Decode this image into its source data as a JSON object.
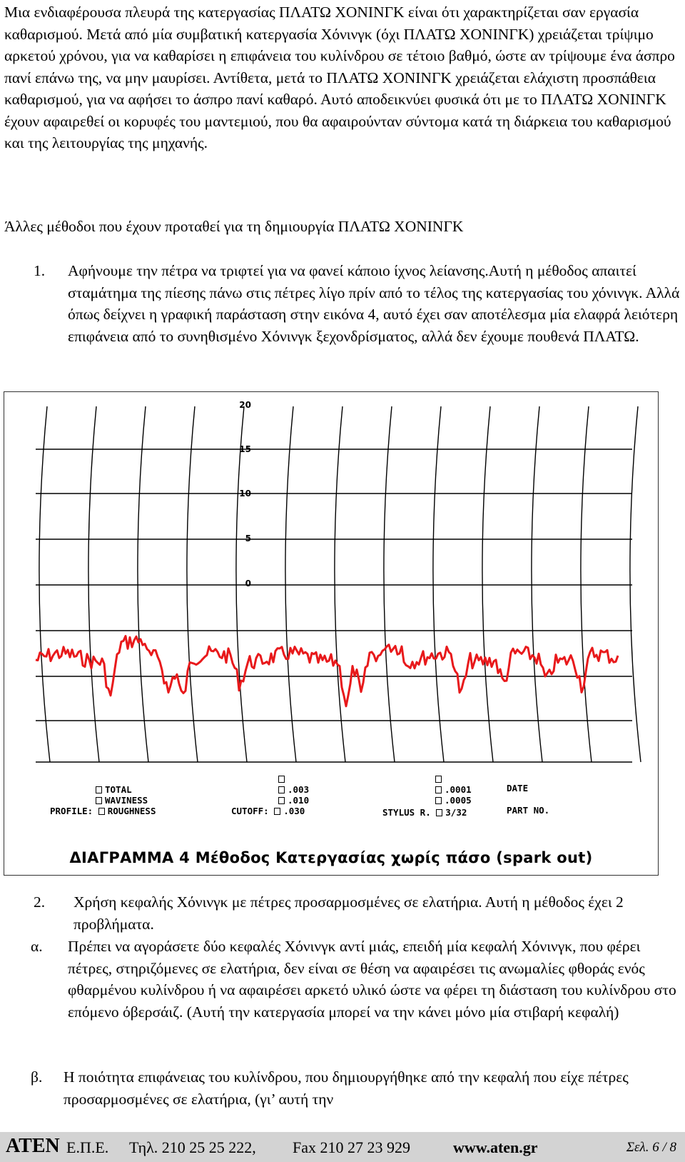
{
  "paragraph1": "Μια ενδιαφέρουσα πλευρά της κατεργασίας ΠΛΑΤΩ ΧΟΝΙΝΓΚ είναι ότι χαρακτηρίζεται σαν εργασία καθαρισμού. Μετά από μία συμβατική κατεργασία Χόνινγκ (όχι ΠΛΑΤΩ ΧΟΝΙΝΓΚ) χρειάζεται τρίψιμο αρκετού χρόνου, για να καθαρίσει η επιφάνεια του κυλίνδρου σε τέτοιο βαθμό, ώστε αν τρίψουμε ένα άσπρο πανί επάνω της, να μην μαυρίσει. Αντίθετα, μετά το ΠΛΑΤΩ ΧΟΝΙΝΓΚ χρειάζεται ελάχιστη προσπάθεια καθαρισμού, για να αφήσει το άσπρο πανί καθαρό. Αυτό αποδεικνύει φυσικά ότι με το ΠΛΑΤΩ ΧΟΝΙΝΓΚ έχουν αφαιρεθεί οι κορυφές του μαντεμιού, που θα αφαιρούνταν σύντομα κατά τη διάρκεια του καθαρισμού και της λειτουργίας της μηχανής.",
  "paragraph2": "Άλλες μέθοδοι που έχουν προταθεί για τη δημιουργία ΠΛΑΤΩ ΧΟΝΙΝΓΚ",
  "list1": {
    "num": "1.",
    "text": "Αφήνουμε την πέτρα να τριφτεί για να φανεί κάποιο ίχνος λείανσης.Αυτή η μέθοδος απαιτεί σταμάτημα της πίεσης πάνω στις πέτρες λίγο πρίν από το τέλος της κατεργασίας του χόνινγκ. Αλλά όπως δείχνει η γραφική παράσταση στην εικόνα 4, αυτό έχει σαν αποτέλεσμα μία ελαφρά λειότερη επιφάνεια από το συνηθισμένο Χόνινγκ ξεχονδρίσματος, αλλά δεν έχουμε πουθενά ΠΛΑΤΩ."
  },
  "figure": {
    "caption": "ΔΙΑΓΡΑΜΜΑ 4 Μέθοδος Κατεργασίας χωρίς πάσο (spark out)",
    "scale_labels": [
      "20",
      "15",
      "10",
      "5",
      "0"
    ],
    "profile_label": "PROFILE:",
    "profile_options": [
      "TOTAL",
      "WAVINESS",
      "ROUGHNESS"
    ],
    "cutoff_label": "CUTOFF:",
    "cutoff_options": [
      ".003",
      ".010",
      ".030"
    ],
    "stylus_label": "STYLUS R.",
    "stylus_options": [
      ".0001",
      ".0005",
      "3/32"
    ],
    "date_label": "DATE",
    "part_label": "PART NO.",
    "trace_color": "#e8191b"
  },
  "item2": {
    "num": "2.",
    "text": "Χρήση κεφαλής Χόνινγκ με πέτρες προσαρμοσμένες σε ελατήρια. Αυτή η μέθοδος έχει 2 προβλήματα."
  },
  "itemA": {
    "num": "α.",
    "text": "Πρέπει να αγοράσετε δύο κεφαλές Χόνινγκ αντί μιάς, επειδή μία κεφαλή Χόνινγκ, που φέρει πέτρες, στηριζόμενες σε ελατήρια, δεν είναι σε θέση να αφαιρέσει τις ανωμαλίες φθοράς ενός φθαρμένου κυλίνδρου ή να αφαιρέσει αρκετό υλικό ώστε να φέρει τη διάσταση του κυλίνδρου στο επόμενο όβερσάιζ. (Αυτή την κατεργασία μπορεί να την κάνει μόνο μία στιβαρή κεφαλή)"
  },
  "itemB": {
    "num": "β.",
    "text": "Η ποιότητα επιφάνειας του κυλίνδρου, που δημιουργήθηκε από την κεφαλή που είχε πέτρες προσαρμοσμένες σε ελατήρια, (γι’ αυτή την"
  },
  "footer": {
    "brand": "ATEN",
    "company": "Ε.Π.Ε.",
    "tel": "Τηλ. 210 25 25 222,",
    "fax": "Fax 210 27 23 929",
    "web": "www.aten.gr",
    "page": "Σελ. 6 / 8"
  }
}
